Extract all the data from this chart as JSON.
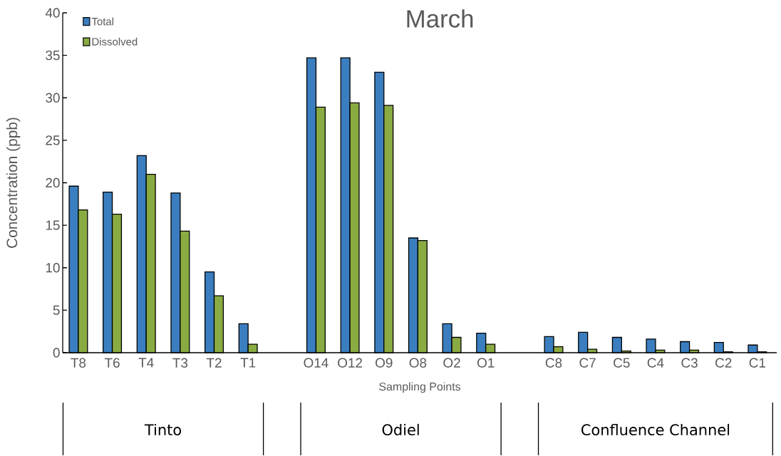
{
  "chart_data": {
    "type": "bar",
    "title": "March",
    "xlabel": "Sampling Points",
    "ylabel": "Concentration (ppb)",
    "categories": [
      "T8",
      "T6",
      "T4",
      "T3",
      "T2",
      "T1",
      null,
      "O14",
      "O12",
      "O9",
      "O8",
      "O2",
      "O1",
      null,
      "C8",
      "C7",
      "C5",
      "C4",
      "C3",
      "C2",
      "C1"
    ],
    "series": [
      {
        "name": "Total",
        "color": "#3a7ebf",
        "values": [
          19.6,
          18.9,
          23.2,
          18.8,
          9.5,
          3.4,
          null,
          34.7,
          34.7,
          33.0,
          13.5,
          3.4,
          2.3,
          null,
          1.9,
          2.4,
          1.8,
          1.6,
          1.3,
          1.2,
          0.9
        ]
      },
      {
        "name": "Dissolved",
        "color": "#8aab42",
        "values": [
          16.8,
          16.3,
          21.0,
          14.3,
          6.7,
          1.0,
          null,
          28.9,
          29.4,
          29.1,
          13.2,
          1.8,
          1.0,
          null,
          0.7,
          0.4,
          0.2,
          0.3,
          0.3,
          0.1,
          0.1
        ]
      }
    ],
    "ylim": [
      0,
      40
    ],
    "yticks": [
      0,
      5,
      10,
      15,
      20,
      25,
      30,
      35,
      40
    ],
    "legend": "top left",
    "annotations": [
      "Tinto",
      "Odiel",
      "Confluence Channel"
    ]
  }
}
